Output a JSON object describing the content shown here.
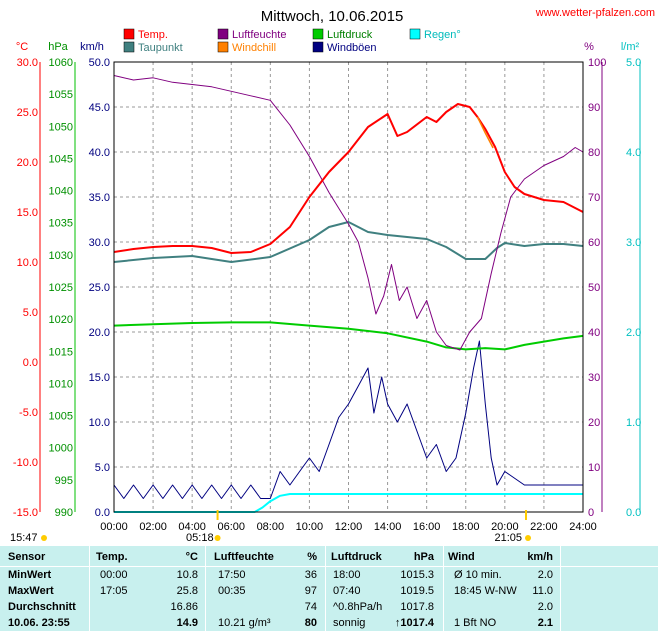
{
  "header": {
    "title": "Mittwoch, 10.06.2015",
    "site": "www.wetter-pfalzen.com"
  },
  "legend": [
    {
      "label": "Temp.",
      "color": "#ff0000"
    },
    {
      "label": "Luftfeuchte",
      "color": "#800080"
    },
    {
      "label": "Luftdruck",
      "color": "#00cc00"
    },
    {
      "label": "Regen°",
      "color": "#00ffff"
    },
    {
      "label": "Taupunkt",
      "color": "#408080"
    },
    {
      "label": "Windchill",
      "color": "#ff8000"
    },
    {
      "label": "Windböen",
      "color": "#000080"
    }
  ],
  "axes": {
    "unit_celsius": "°C",
    "unit_hpa": "hPa",
    "unit_kmh": "km/h",
    "unit_pct": "%",
    "unit_lm2": "l/m²",
    "celsius_ticks": [
      "30.0",
      "25.0",
      "20.0",
      "15.0",
      "10.0",
      "5.0",
      "0.0",
      "-5.0",
      "-10.0",
      "-15.0"
    ],
    "hpa_ticks": [
      "1060",
      "1055",
      "1050",
      "1045",
      "1040",
      "1035",
      "1030",
      "1025",
      "1020",
      "1015",
      "1010",
      "1005",
      "1000",
      "995",
      "990"
    ],
    "kmh_ticks": [
      "50.0",
      "45.0",
      "40.0",
      "35.0",
      "30.0",
      "25.0",
      "20.0",
      "15.0",
      "10.0",
      "5.0",
      "0.0"
    ],
    "pct_ticks": [
      "100",
      "90",
      "80",
      "70",
      "60",
      "50",
      "40",
      "30",
      "20",
      "10",
      "0"
    ],
    "lm2_ticks": [
      "5.0",
      "4.0",
      "3.0",
      "2.0",
      "1.0",
      "0.0"
    ],
    "x_ticks": [
      "00:00",
      "02:00",
      "04:00",
      "06:00",
      "08:00",
      "10:00",
      "12:00",
      "14:00",
      "16:00",
      "18:00",
      "20:00",
      "22:00",
      "24:00"
    ],
    "sunrise": "05:18",
    "sunset": "21:05",
    "time_left": "15:47"
  },
  "chart_data": {
    "type": "line",
    "x_unit": "hours",
    "xlim": [
      0,
      24
    ],
    "series": [
      {
        "name": "Temp.",
        "axis": "celsius",
        "ylim": [
          -15,
          30
        ],
        "color": "#ff0000",
        "points": [
          [
            0,
            11.0
          ],
          [
            1,
            11.3
          ],
          [
            2,
            11.5
          ],
          [
            3,
            11.6
          ],
          [
            4,
            11.6
          ],
          [
            5,
            11.4
          ],
          [
            6,
            10.9
          ],
          [
            7,
            11.0
          ],
          [
            8,
            11.8
          ],
          [
            9,
            13.5
          ],
          [
            10,
            16.5
          ],
          [
            11,
            19.0
          ],
          [
            12,
            21.0
          ],
          [
            13,
            23.5
          ],
          [
            14,
            24.8
          ],
          [
            14.5,
            22.6
          ],
          [
            15,
            23.0
          ],
          [
            16,
            24.5
          ],
          [
            16.5,
            24.0
          ],
          [
            17,
            25.0
          ],
          [
            17.6,
            25.8
          ],
          [
            18.2,
            25.5
          ],
          [
            18.6,
            24.5
          ],
          [
            19,
            23.3
          ],
          [
            19.5,
            21.5
          ],
          [
            20,
            19.0
          ],
          [
            20.5,
            17.5
          ],
          [
            21,
            16.8
          ],
          [
            22,
            16.2
          ],
          [
            23,
            16.0
          ],
          [
            24,
            15.0
          ]
        ]
      },
      {
        "name": "Luftfeuchte",
        "axis": "pct",
        "ylim": [
          0,
          100
        ],
        "color": "#800080",
        "points": [
          [
            0,
            97
          ],
          [
            1,
            96
          ],
          [
            2,
            96.5
          ],
          [
            3,
            95.5
          ],
          [
            4,
            95
          ],
          [
            5,
            94.5
          ],
          [
            6,
            93.5
          ],
          [
            7,
            92.5
          ],
          [
            8,
            91.5
          ],
          [
            9,
            86
          ],
          [
            10,
            79
          ],
          [
            11,
            71
          ],
          [
            12,
            64
          ],
          [
            12.5,
            60
          ],
          [
            13,
            52
          ],
          [
            13.4,
            44
          ],
          [
            13.8,
            48
          ],
          [
            14.2,
            55
          ],
          [
            14.6,
            47
          ],
          [
            15,
            50
          ],
          [
            15.5,
            43
          ],
          [
            16,
            47
          ],
          [
            16.5,
            40
          ],
          [
            17,
            37
          ],
          [
            17.7,
            36
          ],
          [
            18.2,
            40
          ],
          [
            18.8,
            43
          ],
          [
            19.3,
            53
          ],
          [
            19.8,
            62
          ],
          [
            20.3,
            70
          ],
          [
            21,
            74
          ],
          [
            22,
            77
          ],
          [
            23,
            79
          ],
          [
            23.6,
            81
          ],
          [
            24,
            80
          ]
        ]
      },
      {
        "name": "Luftdruck",
        "axis": "hpa",
        "ylim": [
          990,
          1060
        ],
        "color": "#00cc00",
        "points": [
          [
            0,
            1019.0
          ],
          [
            2,
            1019.2
          ],
          [
            4,
            1019.4
          ],
          [
            6,
            1019.5
          ],
          [
            8,
            1019.5
          ],
          [
            10,
            1019.0
          ],
          [
            12,
            1018.5
          ],
          [
            14,
            1017.8
          ],
          [
            16,
            1016.5
          ],
          [
            17,
            1015.6
          ],
          [
            18,
            1015.3
          ],
          [
            19,
            1015.5
          ],
          [
            20,
            1015.3
          ],
          [
            21,
            1016.0
          ],
          [
            22,
            1016.5
          ],
          [
            23,
            1017.0
          ],
          [
            24,
            1017.4
          ]
        ]
      },
      {
        "name": "Taupunkt",
        "axis": "celsius",
        "ylim": [
          -15,
          30
        ],
        "color": "#408080",
        "points": [
          [
            0,
            10.0
          ],
          [
            2,
            10.4
          ],
          [
            4,
            10.6
          ],
          [
            6,
            10.0
          ],
          [
            8,
            10.5
          ],
          [
            10,
            12.2
          ],
          [
            11,
            13.5
          ],
          [
            12,
            14.0
          ],
          [
            13,
            13.0
          ],
          [
            14,
            12.7
          ],
          [
            15,
            12.5
          ],
          [
            16,
            12.3
          ],
          [
            17,
            11.5
          ],
          [
            18,
            10.3
          ],
          [
            19,
            10.3
          ],
          [
            19.6,
            11.4
          ],
          [
            20,
            11.9
          ],
          [
            21,
            11.6
          ],
          [
            22,
            11.8
          ],
          [
            23,
            11.8
          ],
          [
            24,
            11.6
          ]
        ]
      },
      {
        "name": "Windchill",
        "axis": "celsius",
        "ylim": [
          -15,
          30
        ],
        "color": "#ff8000",
        "points": [
          [
            18.6,
            24.5
          ],
          [
            19.0,
            22.9
          ],
          [
            19.4,
            21.4
          ]
        ]
      },
      {
        "name": "Windböen",
        "axis": "kmh",
        "ylim": [
          0,
          50
        ],
        "color": "#000080",
        "points": [
          [
            0,
            3
          ],
          [
            0.5,
            1.5
          ],
          [
            1,
            3
          ],
          [
            1.5,
            1.5
          ],
          [
            2,
            3
          ],
          [
            2.5,
            1.5
          ],
          [
            3,
            3
          ],
          [
            3.5,
            1.5
          ],
          [
            4,
            3
          ],
          [
            4.5,
            1.5
          ],
          [
            5,
            3
          ],
          [
            5.5,
            1.5
          ],
          [
            6,
            3
          ],
          [
            6.5,
            1.5
          ],
          [
            7,
            3
          ],
          [
            7.5,
            1.5
          ],
          [
            8,
            1.5
          ],
          [
            8.5,
            4.5
          ],
          [
            9,
            3
          ],
          [
            9.5,
            4.5
          ],
          [
            10,
            6
          ],
          [
            10.5,
            4.5
          ],
          [
            11,
            7.5
          ],
          [
            11.5,
            10.5
          ],
          [
            12,
            12
          ],
          [
            12.5,
            14
          ],
          [
            13,
            16
          ],
          [
            13.3,
            11
          ],
          [
            13.7,
            15
          ],
          [
            14,
            12
          ],
          [
            14.5,
            10
          ],
          [
            15,
            12
          ],
          [
            15.5,
            9
          ],
          [
            16,
            6
          ],
          [
            16.5,
            7.5
          ],
          [
            17,
            4.5
          ],
          [
            17.5,
            6
          ],
          [
            18,
            11
          ],
          [
            18.4,
            16
          ],
          [
            18.7,
            19
          ],
          [
            19,
            12
          ],
          [
            19.3,
            6
          ],
          [
            19.6,
            3
          ],
          [
            20,
            4.5
          ],
          [
            21,
            3
          ],
          [
            22,
            3
          ],
          [
            23,
            3
          ],
          [
            24,
            3
          ]
        ]
      },
      {
        "name": "Regen°",
        "axis": "lm2",
        "ylim": [
          0,
          5
        ],
        "color": "#00ffff",
        "points": [
          [
            0,
            0
          ],
          [
            7.2,
            0
          ],
          [
            7.6,
            0.05
          ],
          [
            8.0,
            0.12
          ],
          [
            8.5,
            0.18
          ],
          [
            9,
            0.2
          ],
          [
            24,
            0.2
          ]
        ]
      }
    ]
  },
  "table": {
    "headers": [
      "Sensor",
      "Temp.",
      "°C",
      "Luftfeuchte",
      "%",
      "Luftdruck",
      "hPa",
      "Wind",
      "km/h"
    ],
    "rows": [
      {
        "label": "MinWert",
        "t_time": "00:00",
        "t_val": "10.8",
        "h_time": "17:50",
        "h_val": "36",
        "p_time": "18:00",
        "p_val": "1015.3",
        "w_desc": "Ø 10 min.",
        "w_val": "2.0"
      },
      {
        "label": "MaxWert",
        "t_time": "17:05",
        "t_val": "25.8",
        "h_time": "00:35",
        "h_val": "97",
        "p_time": "07:40",
        "p_val": "1019.5",
        "w_desc": "18:45    W-NW",
        "w_val": "11.0"
      },
      {
        "label": "Durchschnitt",
        "t_time": "",
        "t_val": "16.86",
        "h_time": "",
        "h_val": "74",
        "p_time": "^0.8hPa/h",
        "p_val": "1017.8",
        "w_desc": "",
        "w_val": "2.0"
      },
      {
        "label": "10.06. 23:55",
        "t_time": "",
        "t_val": "14.9",
        "h_time": "10.21 g/m³",
        "h_val": "80",
        "p_time": "sonnig",
        "p_val": "↑1017.4",
        "w_desc": "1 Bft NO",
        "w_val": "2.1"
      }
    ]
  }
}
